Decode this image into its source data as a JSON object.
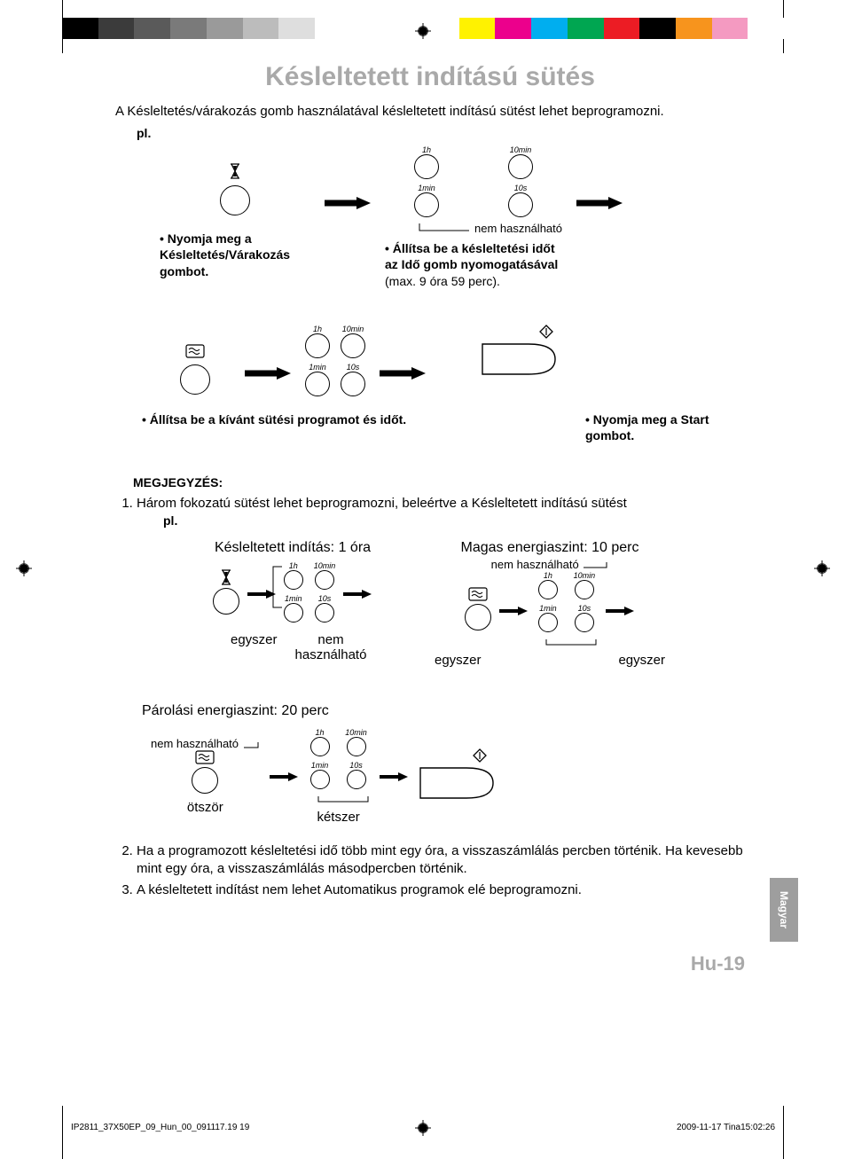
{
  "colorbar": [
    "#000000",
    "#3b3b3b",
    "#5a5a5a",
    "#7a7a7a",
    "#9a9a9a",
    "#bcbcbc",
    "#dedede",
    "#ffffff",
    "#ffffff",
    "#ffffff",
    "#ffffff",
    "#fff200",
    "#ec008c",
    "#00aeef",
    "#00a651",
    "#ec1c24",
    "#000000",
    "#f7941d",
    "#f49ac1",
    "#ffffff"
  ],
  "title": "Késleltetett indítású sütés",
  "intro": "A Késleltetés/várakozás gomb használatával késleltetett indítású sütést lehet beprogramozni.",
  "pl": "pl.",
  "timer_labels": {
    "h1": "1h",
    "m10": "10min",
    "m1": "1min",
    "s10": "10s"
  },
  "not_usable": "nem használható",
  "step1": "• Nyomja meg a Késleltetés/Várakozás gombot.",
  "step2a": "• Állítsa be a késleltetési időt az Idő gomb nyomogatásával",
  "step2b": " (max. 9 óra 59 perc).",
  "step3": "• Állítsa be a kívánt sütési programot és időt.",
  "step4": "• Nyomja meg a Start gombot.",
  "notes_h": "MEGJEGYZÉS:",
  "note1": "Három fokozatú sütést lehet beprogramozni, beleértve a Késleltetett indítású sütést",
  "ex1_title": "Késleltetett indítás: 1 óra",
  "ex2_title": "Magas energiaszint: 10 perc",
  "ex3_title": "Párolási energiaszint: 20 perc",
  "once": "egyszer",
  "five": "ötször",
  "twice": "kétszer",
  "note2": "Ha a programozott késleltetési idő több mint egy óra, a visszaszámlálás percben történik. Ha kevesebb mint egy óra, a visszaszámlálás másodpercben történik.",
  "note3": "A késleltetett indítást nem lehet Automatikus programok elé beprogramozni.",
  "tab": "Magyar",
  "page_num": "Hu-19",
  "footer_left": "IP2811_37X50EP_09_Hun_00_091117.19   19",
  "footer_right": "2009-11-17   Tina15:02:26"
}
